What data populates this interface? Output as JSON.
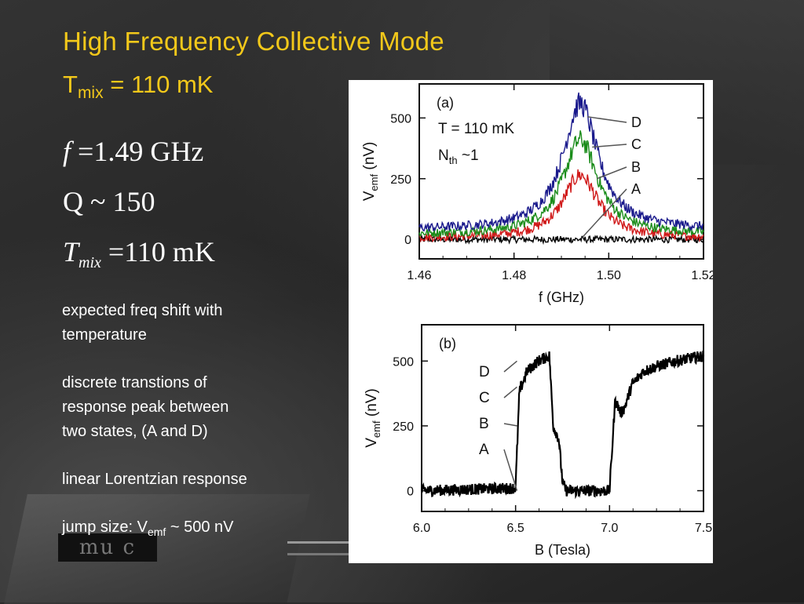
{
  "slide": {
    "title": "High Frequency Collective Mode",
    "tmix_base": "T",
    "tmix_sub": "mix",
    "tmix_rest": " =  110 mK"
  },
  "equations": [
    {
      "lhs": "f",
      "lhs_sub": "",
      "rhs": " =1.49 GHz"
    },
    {
      "lhs": "Q",
      "lhs_sub": "",
      "rhs": " ~ 150"
    },
    {
      "lhs": "T",
      "lhs_sub": "mix",
      "rhs": " =110 mK"
    }
  ],
  "bullets": {
    "b1_line1": "expected freq shift with",
    "b1_line2": "temperature",
    "b2_line1": "discrete transtions of",
    "b2_line2": "response peak between",
    "b2_line3": "two states, (A and D)",
    "b3": "linear Lorentzian response",
    "b4_pre": "jump size:  V",
    "b4_sub": "emf",
    "b4_post": " ~  500 nV"
  },
  "background_label": "mu c",
  "chart_data": [
    {
      "type": "line",
      "panel_label": "(a)",
      "annotations": [
        "T = 110 mK",
        "N",
        "th",
        "~1"
      ],
      "xlabel": "f  (GHz)",
      "ylabel_base": "V",
      "ylabel_sub": "emf",
      "ylabel_unit": "(nV)",
      "xlim": [
        1.46,
        1.52
      ],
      "ylim": [
        -80,
        640
      ],
      "x_ticks": [
        "1.46",
        "1.48",
        "1.50",
        "1.52"
      ],
      "y_ticks": [
        "0",
        "250",
        "500"
      ],
      "center_ghz": 1.494,
      "width_ghz": 0.009,
      "series": [
        {
          "name": "D",
          "color": "#1a1a8c",
          "peak": 520,
          "baseline": 40
        },
        {
          "name": "C",
          "color": "#1a8c1a",
          "peak": 390,
          "baseline": 20
        },
        {
          "name": "B",
          "color": "#d01a1a",
          "peak": 260,
          "baseline": 5
        },
        {
          "name": "A",
          "color": "#000000",
          "peak": 0,
          "baseline": 0
        }
      ]
    },
    {
      "type": "line",
      "panel_label": "(b)",
      "xlabel": "B  (Tesla)",
      "ylabel_base": "V",
      "ylabel_sub": "emf",
      "ylabel_unit": "(nV)",
      "xlim": [
        6.0,
        7.5
      ],
      "ylim": [
        -80,
        640
      ],
      "x_ticks": [
        "6.0",
        "6.5",
        "7.0",
        "7.5"
      ],
      "y_ticks": [
        "0",
        "250",
        "500"
      ],
      "state_labels": [
        "D",
        "C",
        "B",
        "A"
      ],
      "state_values": [
        500,
        400,
        250,
        0
      ],
      "series": [
        {
          "name": "",
          "color": "#000000",
          "x": [
            6.0,
            6.5,
            6.52,
            6.56,
            6.62,
            6.68,
            6.7,
            6.73,
            6.75,
            6.77,
            7.0,
            7.03,
            7.06,
            7.08,
            7.12,
            7.18,
            7.25,
            7.35,
            7.5
          ],
          "y": [
            0,
            10,
            380,
            460,
            500,
            520,
            250,
            200,
            30,
            0,
            0,
            350,
            300,
            320,
            410,
            460,
            480,
            500,
            520
          ]
        }
      ]
    }
  ]
}
